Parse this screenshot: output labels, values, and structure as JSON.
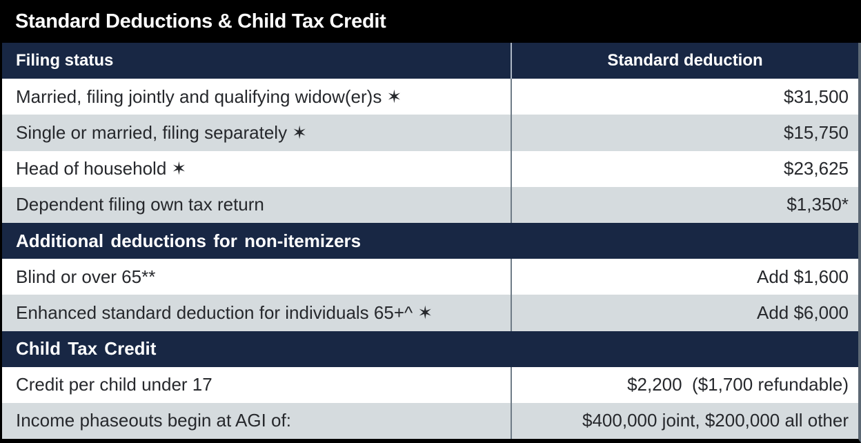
{
  "title": "Standard Deductions & Child Tax Credit",
  "colors": {
    "title_bar_bg": "#000000",
    "header_navy": "#182744",
    "row_white": "#ffffff",
    "row_gray": "#d5dbde",
    "text": "#26282c",
    "column_divider": "#6e7b86",
    "outer_border_right": "#5c6874"
  },
  "table": {
    "columns": [
      "Filing status",
      "Standard deduction"
    ],
    "sections": [
      {
        "rows": [
          {
            "label": "Married, filing jointly and qualifying widow(er)s ✶",
            "value": "$31,500"
          },
          {
            "label": "Single or married, filing separately ✶",
            "value": "$15,750"
          },
          {
            "label": "Head of household ✶",
            "value": "$23,625"
          },
          {
            "label": "Dependent filing own tax return",
            "value": "$1,350*"
          }
        ]
      },
      {
        "header": "Additional deductions for non-itemizers",
        "rows": [
          {
            "label": "Blind or over 65**",
            "value": "Add $1,600"
          },
          {
            "label": "Enhanced standard deduction for individuals 65+^ ✶",
            "value": "Add $6,000"
          }
        ]
      },
      {
        "header": "Child Tax Credit",
        "rows": [
          {
            "label": "Credit per child under 17",
            "value": "$2,200  ($1,700 refundable)"
          },
          {
            "label": "Income phaseouts begin at AGI of:",
            "value": "$400,000 joint, $200,000 all other"
          }
        ]
      }
    ]
  }
}
